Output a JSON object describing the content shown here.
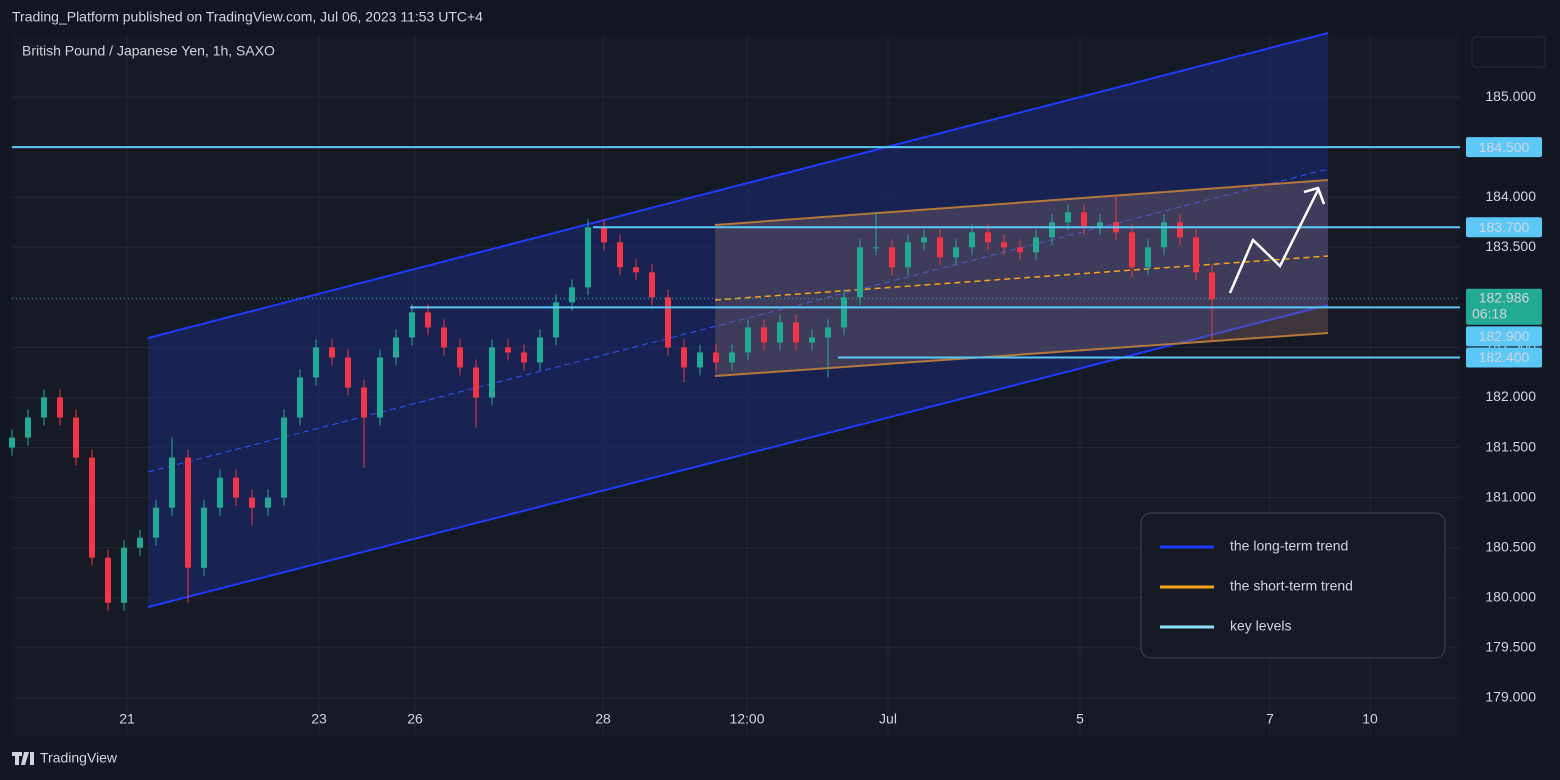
{
  "chart_data": {
    "type": "candlestick",
    "header": "Trading_Platform published on TradingView.com, Jul 06, 2023 11:53 UTC+4",
    "title": "British Pound / Japanese Yen, 1h, SAXO",
    "footer": "TradingView",
    "up_color": "#22ab94",
    "down_color": "#f23645",
    "grid": true,
    "xlim": [
      0,
      362
    ],
    "ylim": [
      178.63,
      185.62
    ],
    "xticks": [
      {
        "value": 28.75,
        "label": "21"
      },
      {
        "value": 76.75,
        "label": "23"
      },
      {
        "value": 100.75,
        "label": "26"
      },
      {
        "value": 147.75,
        "label": "28"
      },
      {
        "value": 183.75,
        "label": "12:00"
      },
      {
        "value": 219,
        "label": "Jul"
      },
      {
        "value": 267,
        "label": "5"
      },
      {
        "value": 314.5,
        "label": "7"
      },
      {
        "value": 339.5,
        "label": "10"
      }
    ],
    "yticks": [
      {
        "value": 179,
        "label": "179.000"
      },
      {
        "value": 179.5,
        "label": "179.500"
      },
      {
        "value": 180,
        "label": "180.000"
      },
      {
        "value": 180.5,
        "label": "180.500"
      },
      {
        "value": 181,
        "label": "181.000"
      },
      {
        "value": 181.5,
        "label": "181.500"
      },
      {
        "value": 182,
        "label": "182.000"
      },
      {
        "value": 182.5,
        "label": "182.500"
      },
      {
        "value": 183,
        "label": "183.000"
      },
      {
        "value": 183.5,
        "label": "183.500"
      },
      {
        "value": 184,
        "label": "184.000"
      },
      {
        "value": 184.5,
        "label": "184.500"
      },
      {
        "value": 185,
        "label": "185.000"
      }
    ],
    "x": [
      0,
      4,
      8,
      12,
      16,
      20,
      24,
      28,
      32,
      36,
      40,
      44,
      48,
      52,
      56,
      60,
      64,
      68,
      72,
      76,
      80,
      84,
      88,
      92,
      96,
      100,
      104,
      108,
      112,
      116,
      120,
      124,
      128,
      132,
      136,
      140,
      144,
      148,
      152,
      156,
      160,
      164,
      168,
      172,
      176,
      180,
      184,
      188,
      192,
      196,
      200,
      204,
      208,
      212,
      216,
      220,
      224,
      228,
      232,
      236,
      240,
      244,
      248,
      252,
      256,
      260,
      264,
      268,
      272,
      276,
      280,
      284,
      288,
      292,
      296,
      300
    ],
    "ohlc": [
      [
        181.5,
        181.68,
        181.42,
        181.6
      ],
      [
        181.6,
        181.88,
        181.52,
        181.8
      ],
      [
        181.8,
        182.08,
        181.72,
        182.0
      ],
      [
        182.0,
        182.08,
        181.72,
        181.8
      ],
      [
        181.8,
        181.88,
        181.32,
        181.4
      ],
      [
        181.4,
        181.48,
        180.32,
        180.4
      ],
      [
        180.4,
        180.48,
        179.87,
        179.95
      ],
      [
        179.95,
        180.58,
        179.87,
        180.5
      ],
      [
        180.5,
        180.68,
        180.42,
        180.6
      ],
      [
        180.6,
        180.98,
        180.52,
        180.9
      ],
      [
        180.9,
        181.6,
        180.82,
        181.4
      ],
      [
        181.4,
        181.48,
        179.95,
        180.3
      ],
      [
        180.3,
        180.98,
        180.22,
        180.9
      ],
      [
        180.9,
        181.28,
        180.82,
        181.2
      ],
      [
        181.2,
        181.28,
        180.92,
        181.0
      ],
      [
        181.0,
        181.08,
        180.72,
        180.9
      ],
      [
        180.9,
        181.08,
        180.82,
        181.0
      ],
      [
        181.0,
        181.88,
        180.92,
        181.8
      ],
      [
        181.8,
        182.28,
        181.72,
        182.2
      ],
      [
        182.2,
        182.58,
        182.12,
        182.5
      ],
      [
        182.5,
        182.58,
        182.32,
        182.4
      ],
      [
        182.4,
        182.48,
        182.02,
        182.1
      ],
      [
        182.1,
        182.18,
        181.3,
        181.8
      ],
      [
        181.8,
        182.48,
        181.72,
        182.4
      ],
      [
        182.4,
        182.68,
        182.32,
        182.6
      ],
      [
        182.6,
        182.93,
        182.52,
        182.85
      ],
      [
        182.85,
        182.93,
        182.62,
        182.7
      ],
      [
        182.7,
        182.78,
        182.42,
        182.5
      ],
      [
        182.5,
        182.58,
        182.22,
        182.3
      ],
      [
        182.3,
        182.38,
        181.7,
        182.0
      ],
      [
        182.0,
        182.58,
        181.92,
        182.5
      ],
      [
        182.5,
        182.58,
        182.37,
        182.45
      ],
      [
        182.45,
        182.53,
        182.27,
        182.35
      ],
      [
        182.35,
        182.68,
        182.27,
        182.6
      ],
      [
        182.6,
        183.03,
        182.52,
        182.95
      ],
      [
        182.95,
        183.18,
        182.87,
        183.1
      ],
      [
        183.1,
        183.78,
        183.02,
        183.7
      ],
      [
        183.7,
        183.78,
        183.47,
        183.55
      ],
      [
        183.55,
        183.63,
        183.22,
        183.3
      ],
      [
        183.3,
        183.38,
        183.17,
        183.25
      ],
      [
        183.25,
        183.33,
        182.92,
        183.0
      ],
      [
        183.0,
        183.08,
        182.42,
        182.5
      ],
      [
        182.5,
        182.58,
        182.15,
        182.3
      ],
      [
        182.3,
        182.53,
        182.22,
        182.45
      ],
      [
        182.45,
        182.53,
        182.27,
        182.35
      ],
      [
        182.35,
        182.53,
        182.27,
        182.45
      ],
      [
        182.45,
        182.78,
        182.37,
        182.7
      ],
      [
        182.7,
        182.78,
        182.47,
        182.55
      ],
      [
        182.55,
        182.83,
        182.47,
        182.75
      ],
      [
        182.75,
        182.83,
        182.47,
        182.55
      ],
      [
        182.55,
        182.68,
        182.47,
        182.6
      ],
      [
        182.6,
        182.78,
        182.2,
        182.7
      ],
      [
        182.7,
        183.08,
        182.62,
        183.0
      ],
      [
        183.0,
        183.58,
        182.92,
        183.5
      ],
      [
        183.5,
        183.85,
        183.42,
        183.5
      ],
      [
        183.5,
        183.58,
        183.22,
        183.3
      ],
      [
        183.3,
        183.63,
        183.22,
        183.55
      ],
      [
        183.55,
        183.68,
        183.47,
        183.6
      ],
      [
        183.6,
        183.68,
        183.32,
        183.4
      ],
      [
        183.4,
        183.58,
        183.32,
        183.5
      ],
      [
        183.5,
        183.73,
        183.42,
        183.65
      ],
      [
        183.65,
        183.73,
        183.47,
        183.55
      ],
      [
        183.55,
        183.63,
        183.42,
        183.5
      ],
      [
        183.5,
        183.58,
        183.37,
        183.45
      ],
      [
        183.45,
        183.68,
        183.37,
        183.6
      ],
      [
        183.6,
        183.83,
        183.52,
        183.75
      ],
      [
        183.75,
        183.93,
        183.67,
        183.85
      ],
      [
        183.85,
        183.93,
        183.62,
        183.7
      ],
      [
        183.7,
        183.83,
        183.62,
        183.75
      ],
      [
        183.75,
        184.02,
        183.57,
        183.65
      ],
      [
        183.65,
        183.73,
        183.2,
        183.3
      ],
      [
        183.3,
        183.58,
        183.22,
        183.5
      ],
      [
        183.5,
        183.83,
        183.42,
        183.75
      ],
      [
        183.75,
        183.83,
        183.52,
        183.6
      ],
      [
        183.6,
        183.68,
        183.17,
        183.25
      ],
      [
        183.25,
        183.33,
        182.55,
        182.98
      ]
    ],
    "levels": [
      {
        "value": 184.5,
        "label": "184.500"
      },
      {
        "value": 183.7,
        "label": "183.700"
      },
      {
        "value": 182.9,
        "label": "182.900"
      },
      {
        "value": 182.4,
        "label": "182.400"
      }
    ],
    "level_color": "#5cc8f8",
    "last_price": {
      "value": 182.986,
      "label": "182.986"
    },
    "countdown": "06:18",
    "legend": [
      {
        "name": "the long-term trend",
        "color": "#1e3cff"
      },
      {
        "name": "the short-term trend",
        "color": "#f5a21c"
      },
      {
        "name": "key levels",
        "color": "#8fe0fa"
      }
    ]
  }
}
